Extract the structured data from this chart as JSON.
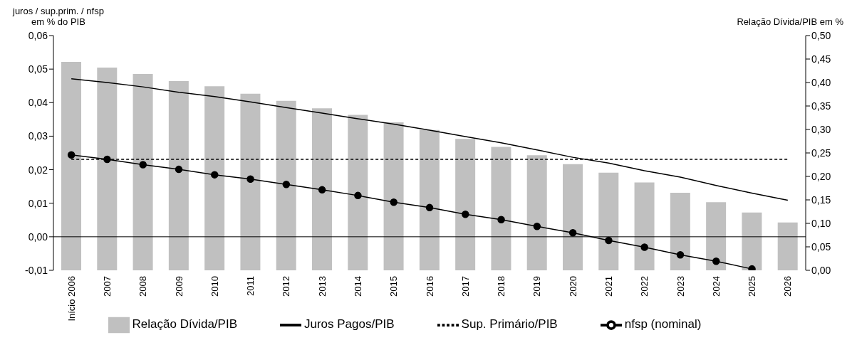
{
  "chart_data": {
    "type": "line",
    "ylabel": "juros / sup.prim. / nfsp\nem % do PIB",
    "y2label": "Relação Dívida/PIB em %",
    "categories": [
      "Início 2006",
      "2007",
      "2008",
      "2009",
      "2010",
      "2011",
      "2012",
      "2013",
      "2014",
      "2015",
      "2016",
      "2017",
      "2018",
      "2019",
      "2020",
      "2021",
      "2022",
      "2023",
      "2024",
      "2025",
      "2026"
    ],
    "series": [
      {
        "name": "Relação Dívida/PIB",
        "type": "bar",
        "axis": "y2",
        "color": "#c0c0c0",
        "values": [
          0.444,
          0.432,
          0.418,
          0.403,
          0.392,
          0.376,
          0.361,
          0.345,
          0.331,
          0.315,
          0.299,
          0.28,
          0.263,
          0.245,
          0.226,
          0.208,
          0.187,
          0.165,
          0.145,
          0.123,
          0.102
        ]
      },
      {
        "name": "Juros Pagos/PIB",
        "color": "#000000",
        "marker": "none",
        "line_style": "solid",
        "values": [
          0.0471,
          0.046,
          0.0447,
          0.0431,
          0.0418,
          0.0402,
          0.0385,
          0.0369,
          0.0352,
          0.0336,
          0.0318,
          0.0299,
          0.028,
          0.0259,
          0.0237,
          0.022,
          0.0197,
          0.0178,
          0.0153,
          0.013,
          0.0109
        ]
      },
      {
        "name": "Sup. Primário/PIB",
        "color": "#000000",
        "marker": "none",
        "line_style": "dashed",
        "values": [
          0.0231,
          0.0231,
          0.0231,
          0.0231,
          0.0231,
          0.0231,
          0.0231,
          0.0231,
          0.0231,
          0.0231,
          0.0231,
          0.0231,
          0.0231,
          0.0231,
          0.0231,
          0.0231,
          0.0231,
          0.0231,
          0.0231,
          0.0231,
          0.0231
        ]
      },
      {
        "name": "nfsp (nominal)",
        "color": "#000000",
        "marker": "circle",
        "line_style": "solid",
        "values": [
          0.0244,
          0.0231,
          0.0215,
          0.0201,
          0.0185,
          0.0172,
          0.0156,
          0.014,
          0.0123,
          0.0103,
          0.0087,
          0.0067,
          0.0051,
          0.0031,
          0.0012,
          -0.0011,
          -0.0031,
          -0.0054,
          -0.0073,
          -0.0096,
          null
        ]
      }
    ],
    "ylim": [
      -0.01,
      0.06
    ],
    "yticks": [
      {
        "value": -0.01,
        "label": "-0,01"
      },
      {
        "value": 0,
        "label": "0,00"
      },
      {
        "value": 0.01,
        "label": "0,01"
      },
      {
        "value": 0.02,
        "label": "0,02"
      },
      {
        "value": 0.03,
        "label": "0,03"
      },
      {
        "value": 0.04,
        "label": "0,04"
      },
      {
        "value": 0.05,
        "label": "0,05"
      },
      {
        "value": 0.06,
        "label": "0,06"
      }
    ],
    "y2lim": [
      0,
      0.5
    ],
    "y2ticks": [
      {
        "value": 0,
        "label": "0,00"
      },
      {
        "value": 0.05,
        "label": "0,05"
      },
      {
        "value": 0.1,
        "label": "0,10"
      },
      {
        "value": 0.15,
        "label": "0,15"
      },
      {
        "value": 0.2,
        "label": "0,20"
      },
      {
        "value": 0.25,
        "label": "0,25"
      },
      {
        "value": 0.3,
        "label": "0,30"
      },
      {
        "value": 0.35,
        "label": "0,35"
      },
      {
        "value": 0.4,
        "label": "0,40"
      },
      {
        "value": 0.45,
        "label": "0,45"
      },
      {
        "value": 0.5,
        "label": "0,50"
      }
    ],
    "ref_lines": [
      {
        "axis": "y",
        "value": 0,
        "color": "#000000"
      }
    ],
    "grid": false,
    "legend": "bottom"
  }
}
